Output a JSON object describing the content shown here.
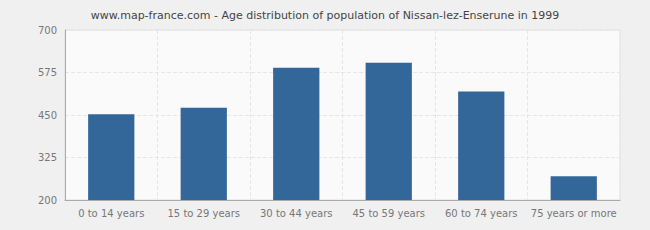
{
  "chart_data": {
    "type": "bar",
    "title": "www.map-france.com - Age distribution of population of Nissan-lez-Enserune in 1999",
    "categories": [
      "0 to 14 years",
      "15 to 29 years",
      "30 to 44 years",
      "45 to 59 years",
      "60 to 74 years",
      "75 years or more"
    ],
    "values": [
      452,
      471,
      589,
      604,
      519,
      270
    ],
    "color": "#336699",
    "ylim": [
      200,
      700
    ],
    "yticks": [
      200,
      325,
      450,
      575,
      700
    ],
    "grid": true
  }
}
